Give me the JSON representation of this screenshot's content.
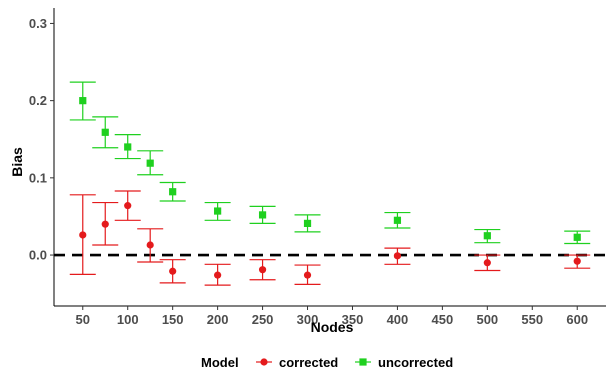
{
  "chart_data": {
    "type": "scatter",
    "title": "",
    "xlabel": "Nodes",
    "ylabel": "Bias",
    "xlim": [
      18,
      632
    ],
    "ylim": [
      -0.066,
      0.32
    ],
    "xticks": [
      50,
      100,
      150,
      200,
      250,
      300,
      350,
      400,
      450,
      500,
      550,
      600
    ],
    "xtick_labels": [
      "50",
      "100",
      "150",
      "200",
      "250",
      "300",
      "350",
      "400",
      "450",
      "500",
      "550",
      "600"
    ],
    "yticks": [
      0,
      0.1,
      0.2,
      0.3
    ],
    "ytick_labels": [
      "0.0",
      "0.1",
      "0.2",
      "0.3"
    ],
    "reference_line": {
      "y": 0,
      "style": "dashed",
      "color": "#000000"
    },
    "legend": {
      "title": "Model",
      "placement": "bottom"
    },
    "grid": false,
    "series": [
      {
        "name": "corrected",
        "color": "#e41a1c",
        "marker": "circle",
        "points": [
          {
            "x": 50,
            "y": 0.026,
            "lo": -0.025,
            "hi": 0.078
          },
          {
            "x": 75,
            "y": 0.04,
            "lo": 0.013,
            "hi": 0.068
          },
          {
            "x": 100,
            "y": 0.064,
            "lo": 0.045,
            "hi": 0.083
          },
          {
            "x": 125,
            "y": 0.013,
            "lo": -0.009,
            "hi": 0.034
          },
          {
            "x": 150,
            "y": -0.021,
            "lo": -0.036,
            "hi": -0.006
          },
          {
            "x": 200,
            "y": -0.026,
            "lo": -0.039,
            "hi": -0.012
          },
          {
            "x": 250,
            "y": -0.019,
            "lo": -0.032,
            "hi": -0.006
          },
          {
            "x": 300,
            "y": -0.026,
            "lo": -0.038,
            "hi": -0.013
          },
          {
            "x": 400,
            "y": -0.001,
            "lo": -0.012,
            "hi": 0.009
          },
          {
            "x": 500,
            "y": -0.01,
            "lo": -0.02,
            "hi": 0.0
          },
          {
            "x": 600,
            "y": -0.008,
            "lo": -0.017,
            "hi": 0.0
          }
        ]
      },
      {
        "name": "uncorrected",
        "color": "#1fd01f",
        "marker": "square",
        "points": [
          {
            "x": 50,
            "y": 0.2,
            "lo": 0.175,
            "hi": 0.224
          },
          {
            "x": 75,
            "y": 0.159,
            "lo": 0.139,
            "hi": 0.179
          },
          {
            "x": 100,
            "y": 0.14,
            "lo": 0.125,
            "hi": 0.156
          },
          {
            "x": 125,
            "y": 0.119,
            "lo": 0.104,
            "hi": 0.135
          },
          {
            "x": 150,
            "y": 0.082,
            "lo": 0.07,
            "hi": 0.094
          },
          {
            "x": 200,
            "y": 0.057,
            "lo": 0.045,
            "hi": 0.068
          },
          {
            "x": 250,
            "y": 0.052,
            "lo": 0.041,
            "hi": 0.063
          },
          {
            "x": 300,
            "y": 0.041,
            "lo": 0.03,
            "hi": 0.052
          },
          {
            "x": 400,
            "y": 0.045,
            "lo": 0.035,
            "hi": 0.055
          },
          {
            "x": 500,
            "y": 0.025,
            "lo": 0.016,
            "hi": 0.033
          },
          {
            "x": 600,
            "y": 0.023,
            "lo": 0.015,
            "hi": 0.031
          }
        ]
      }
    ]
  }
}
